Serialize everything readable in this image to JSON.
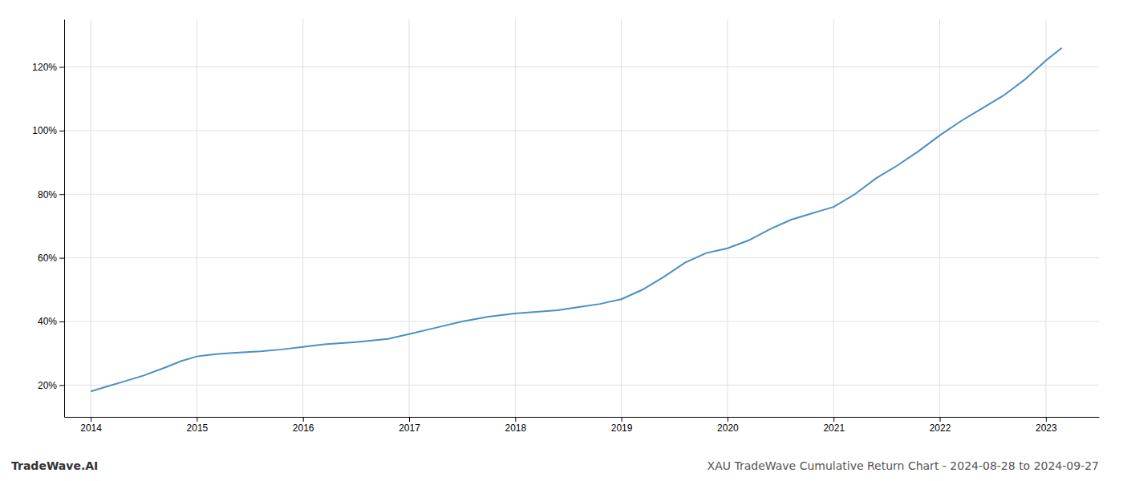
{
  "chart_data": {
    "type": "line",
    "title": "XAU TradeWave Cumulative Return Chart - 2024-08-28 to 2024-09-27",
    "annotations": [
      "TradeWave.AI"
    ],
    "x": [
      2014.0,
      2014.15,
      2014.3,
      2014.5,
      2014.7,
      2014.85,
      2015.0,
      2015.2,
      2015.4,
      2015.6,
      2015.8,
      2016.0,
      2016.2,
      2016.5,
      2016.8,
      2017.0,
      2017.25,
      2017.5,
      2017.75,
      2018.0,
      2018.2,
      2018.4,
      2018.6,
      2018.8,
      2019.0,
      2019.2,
      2019.4,
      2019.6,
      2019.8,
      2020.0,
      2020.2,
      2020.4,
      2020.6,
      2020.8,
      2021.0,
      2021.2,
      2021.4,
      2021.6,
      2021.8,
      2022.0,
      2022.2,
      2022.4,
      2022.6,
      2022.8,
      2023.0,
      2023.15
    ],
    "values": [
      18.0,
      19.5,
      21.0,
      23.0,
      25.5,
      27.5,
      29.0,
      29.8,
      30.2,
      30.6,
      31.2,
      32.0,
      32.8,
      33.5,
      34.5,
      36.0,
      38.0,
      40.0,
      41.5,
      42.5,
      43.0,
      43.5,
      44.5,
      45.5,
      47.0,
      50.0,
      54.0,
      58.5,
      61.5,
      63.0,
      65.5,
      69.0,
      72.0,
      74.0,
      76.0,
      80.0,
      85.0,
      89.0,
      93.5,
      98.5,
      103.0,
      107.0,
      111.0,
      116.0,
      122.0,
      126.0
    ],
    "color": "#4a90c4",
    "xlim": [
      2013.75,
      2023.5
    ],
    "ylim": [
      10,
      135
    ],
    "xticks": [
      2014,
      2015,
      2016,
      2017,
      2018,
      2019,
      2020,
      2021,
      2022,
      2023
    ],
    "yticks": [
      {
        "value": 20,
        "label": "20%"
      },
      {
        "value": 40,
        "label": "40%"
      },
      {
        "value": 60,
        "label": "60%"
      },
      {
        "value": 80,
        "label": "80%"
      },
      {
        "value": 100,
        "label": "100%"
      },
      {
        "value": 120,
        "label": "120%"
      }
    ],
    "grid": true
  }
}
